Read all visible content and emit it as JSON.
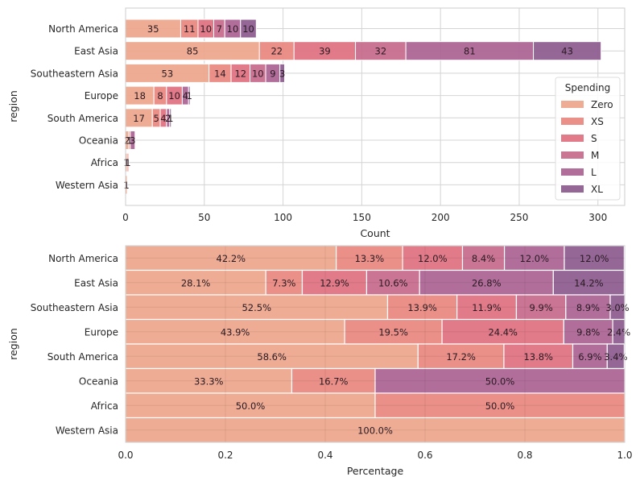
{
  "chart_data": [
    {
      "type": "bar",
      "orientation": "horizontal",
      "stacked": true,
      "title": "",
      "xlabel": "Count",
      "ylabel": "region",
      "xlim": [
        0,
        317
      ],
      "xticks": [
        0,
        50,
        100,
        150,
        200,
        250,
        300
      ],
      "grid": true,
      "categories": [
        "North America",
        "East Asia",
        "Southeastern Asia",
        "Europe",
        "South America",
        "Oceania",
        "Africa",
        "Western Asia"
      ],
      "legend": {
        "title": "Spending",
        "placement": "right"
      },
      "series": [
        {
          "name": "Zero",
          "color": "#eea58b",
          "values": [
            35,
            85,
            53,
            18,
            17,
            2,
            1,
            1
          ]
        },
        {
          "name": "XS",
          "color": "#e8877e",
          "values": [
            11,
            22,
            14,
            8,
            5,
            1,
            1,
            0
          ]
        },
        {
          "name": "S",
          "color": "#de707f",
          "values": [
            10,
            39,
            12,
            10,
            4,
            0,
            0,
            0
          ]
        },
        {
          "name": "M",
          "color": "#c6698a",
          "values": [
            7,
            32,
            10,
            0,
            0,
            0,
            0,
            0
          ]
        },
        {
          "name": "L",
          "color": "#aa6292",
          "values": [
            10,
            81,
            9,
            4,
            2,
            3,
            0,
            0
          ]
        },
        {
          "name": "XL",
          "color": "#8b5a8e",
          "values": [
            10,
            43,
            3,
            1,
            1,
            0,
            0,
            0
          ]
        }
      ]
    },
    {
      "type": "bar",
      "orientation": "horizontal",
      "stacked": true,
      "normalized": true,
      "title": "",
      "xlabel": "Percentage",
      "ylabel": "region",
      "xlim": [
        0,
        1
      ],
      "xticks": [
        "0.0",
        "0.2",
        "0.4",
        "0.6",
        "0.8",
        "1.0"
      ],
      "grid": true,
      "categories": [
        "North America",
        "East Asia",
        "Southeastern Asia",
        "Europe",
        "South America",
        "Oceania",
        "Africa",
        "Western Asia"
      ],
      "series": [
        {
          "name": "Zero",
          "color": "#eea58b",
          "values": [
            0.422,
            0.281,
            0.525,
            0.439,
            0.586,
            0.333,
            0.5,
            1.0
          ],
          "labels": [
            "42.2%",
            "28.1%",
            "52.5%",
            "43.9%",
            "58.6%",
            "33.3%",
            "50.0%",
            "100.0%"
          ]
        },
        {
          "name": "XS",
          "color": "#e8877e",
          "values": [
            0.133,
            0.073,
            0.139,
            0.195,
            0.172,
            0.167,
            0.5,
            0
          ],
          "labels": [
            "13.3%",
            "7.3%",
            "13.9%",
            "19.5%",
            "17.2%",
            "16.7%",
            "50.0%",
            ""
          ]
        },
        {
          "name": "S",
          "color": "#de707f",
          "values": [
            0.12,
            0.129,
            0.119,
            0.244,
            0.138,
            0,
            0,
            0
          ],
          "labels": [
            "12.0%",
            "12.9%",
            "11.9%",
            "24.4%",
            "13.8%",
            "",
            "",
            ""
          ]
        },
        {
          "name": "M",
          "color": "#c6698a",
          "values": [
            0.084,
            0.106,
            0.099,
            0,
            0,
            0,
            0,
            0
          ],
          "labels": [
            "8.4%",
            "10.6%",
            "9.9%",
            "",
            "",
            "",
            "",
            ""
          ]
        },
        {
          "name": "L",
          "color": "#aa6292",
          "values": [
            0.12,
            0.268,
            0.089,
            0.098,
            0.069,
            0.5,
            0,
            0
          ],
          "labels": [
            "12.0%",
            "26.8%",
            "8.9%",
            "9.8%",
            "6.9%",
            "50.0%",
            "",
            ""
          ]
        },
        {
          "name": "XL",
          "color": "#8b5a8e",
          "values": [
            0.12,
            0.142,
            0.03,
            0.024,
            0.034,
            0,
            0,
            0
          ],
          "labels": [
            "12.0%",
            "14.2%",
            "3.0%",
            "2.4%",
            "3.4%",
            "",
            "",
            ""
          ]
        }
      ]
    }
  ]
}
